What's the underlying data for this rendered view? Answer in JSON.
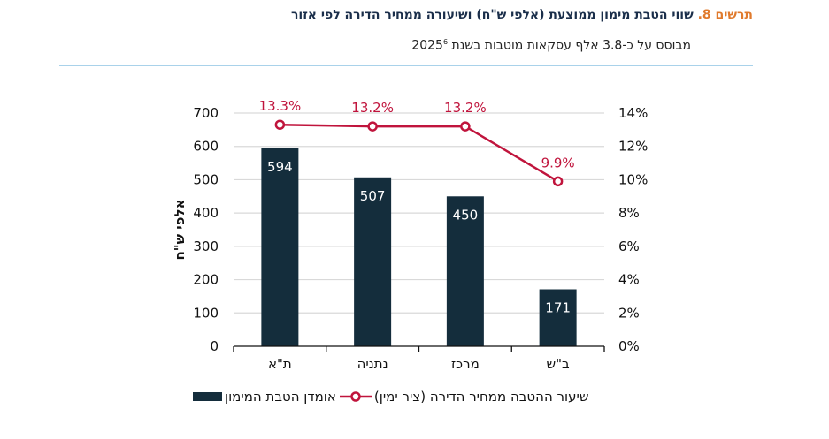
{
  "header": {
    "figure_number": "תרשים 8.",
    "title": "שווי הטבת מימון ממוצעת (אלפי ש\"ח) ושיעורה ממחיר הדירה לפי אזור",
    "subtitle": "מבוסס על כ-3.8 אלף עסקאות מוטבות בשנת 2025",
    "subtitle_footnote": "6"
  },
  "colors": {
    "bar": "#142d3c",
    "line": "#c0143c",
    "grid": "#d9d9d9",
    "title_accent": "#e07a2c",
    "title": "#1a2e4a",
    "divider": "#a9d2ea"
  },
  "chart_data": {
    "type": "bar",
    "title": "שווי הטבת מימון ממוצעת (אלפי ש\"ח) ושיעורה ממחיר הדירה לפי אזור",
    "categories": [
      "ת\"א",
      "נתניה",
      "מרכז",
      "ב\"ש"
    ],
    "series": [
      {
        "name": "אומדן הטבת המימון",
        "type": "bar",
        "axis": "left",
        "values": [
          594,
          507,
          450,
          171
        ],
        "labels": [
          "594",
          "507",
          "450",
          "171"
        ]
      },
      {
        "name": "שיעור ההטבה ממחיר הדירה (ציר ימין)",
        "type": "line",
        "axis": "right",
        "values": [
          13.3,
          13.2,
          13.2,
          9.9
        ],
        "labels": [
          "13.3%",
          "13.2%",
          "13.2%",
          "9.9%"
        ]
      }
    ],
    "ylabel": "אלפי ש\"ח",
    "ylim": [
      0,
      700
    ],
    "yticks": [
      "0",
      "100",
      "200",
      "300",
      "400",
      "500",
      "600",
      "700"
    ],
    "y2lim": [
      0,
      14
    ],
    "y2ticks": [
      "0%",
      "2%",
      "4%",
      "6%",
      "8%",
      "10%",
      "12%",
      "14%"
    ],
    "grid": true,
    "legend_position": "bottom",
    "legend": [
      {
        "label": "שיעור ההטבה ממחיר הדירה (ציר ימין)",
        "kind": "line"
      },
      {
        "label": "אומדן הטבת המימון",
        "kind": "bar"
      }
    ]
  }
}
